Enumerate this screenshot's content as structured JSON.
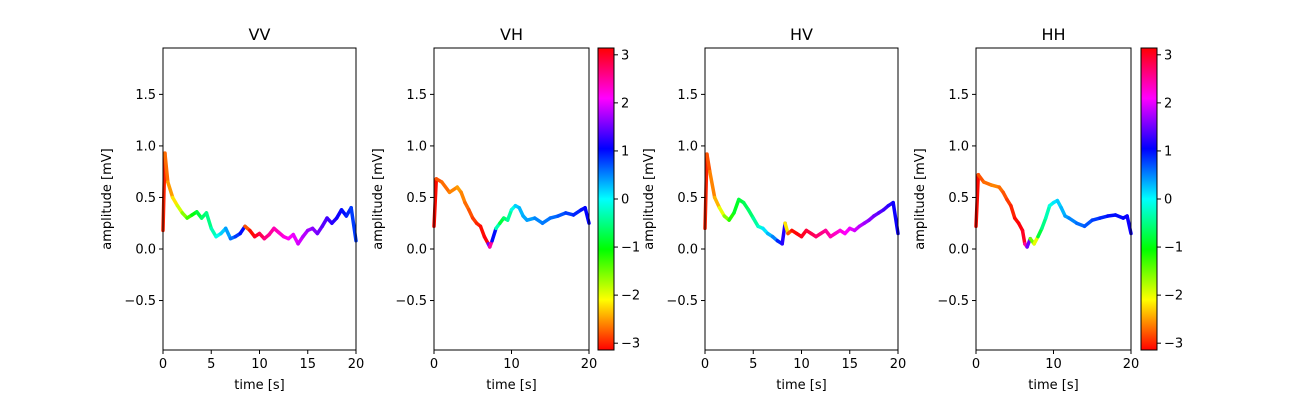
{
  "chart_data": [
    {
      "type": "line",
      "title": "VV",
      "xlabel": "time [s]",
      "ylabel": "amplitude [mV]",
      "xlim": [
        0,
        20
      ],
      "ylim": [
        -0.98,
        1.95
      ],
      "x_ticks": [
        0,
        5,
        10,
        15,
        20
      ],
      "y_ticks": [
        -0.5,
        0.0,
        0.5,
        1.0,
        1.5
      ],
      "x_tick_labels": [
        "0",
        "5",
        "10",
        "15",
        "20"
      ],
      "y_tick_labels": [
        "−0.5",
        "0.0",
        "0.5",
        "1.0",
        "1.5"
      ],
      "color_encoding": "phase (hsv, −π to π)",
      "series": [
        {
          "x": [
            0,
            0.2,
            0.5,
            1.0,
            1.5,
            2.0,
            2.5,
            3.0,
            3.5,
            4.0,
            4.5,
            5.0,
            5.5,
            6.0,
            6.5,
            7.0,
            7.5,
            8.0,
            8.5,
            9.0,
            9.5,
            10.0,
            10.5,
            11.0,
            11.5,
            12.0,
            12.5,
            13.0,
            13.5,
            14.0,
            14.5,
            15.0,
            15.5,
            16.0,
            16.5,
            17.0,
            17.5,
            18.0,
            18.5,
            19.0,
            19.5,
            20.0
          ],
          "y": [
            0.18,
            0.93,
            0.65,
            0.5,
            0.42,
            0.35,
            0.3,
            0.33,
            0.36,
            0.3,
            0.35,
            0.2,
            0.12,
            0.15,
            0.2,
            0.1,
            0.12,
            0.15,
            0.22,
            0.18,
            0.12,
            0.15,
            0.1,
            0.14,
            0.2,
            0.16,
            0.12,
            0.1,
            0.14,
            0.05,
            0.12,
            0.18,
            0.2,
            0.15,
            0.22,
            0.3,
            0.25,
            0.3,
            0.38,
            0.32,
            0.4,
            0.08
          ],
          "phase": [
            -3.0,
            -2.7,
            -2.5,
            -2.2,
            -1.9,
            -1.6,
            -1.3,
            -1.0,
            -0.8,
            -0.6,
            -0.5,
            -0.3,
            -0.1,
            0.2,
            0.4,
            0.6,
            0.8,
            1.0,
            -2.8,
            -3.1,
            3.0,
            2.8,
            2.6,
            2.5,
            2.4,
            2.3,
            2.2,
            2.1,
            2.0,
            1.9,
            1.8,
            1.7,
            1.6,
            1.5,
            1.4,
            1.3,
            1.2,
            1.1,
            1.0,
            0.9,
            0.8,
            3.1
          ]
        }
      ]
    },
    {
      "type": "line",
      "title": "VH",
      "xlabel": "time [s]",
      "ylabel": "amplitude [mV]",
      "xlim": [
        0,
        20
      ],
      "ylim": [
        -0.98,
        1.95
      ],
      "x_ticks": [
        0,
        10,
        20
      ],
      "y_ticks": [
        -0.5,
        0.0,
        0.5,
        1.0,
        1.5
      ],
      "x_tick_labels": [
        "0",
        "10",
        "20"
      ],
      "y_tick_labels": [
        "−0.5",
        "0.0",
        "0.5",
        "1.0",
        "1.5"
      ],
      "color_encoding": "phase (hsv, −π to π)",
      "series": [
        {
          "x": [
            0,
            0.3,
            1.0,
            2.0,
            3.0,
            3.5,
            4.0,
            4.5,
            5.0,
            5.5,
            6.0,
            6.5,
            7.0,
            7.2,
            7.5,
            8.0,
            8.5,
            9.0,
            9.5,
            10.0,
            10.5,
            11.0,
            11.5,
            12.0,
            13.0,
            14.0,
            15.0,
            16.0,
            17.0,
            18.0,
            19.0,
            19.5,
            20.0
          ],
          "y": [
            0.22,
            0.68,
            0.65,
            0.55,
            0.6,
            0.55,
            0.45,
            0.38,
            0.3,
            0.25,
            0.22,
            0.12,
            0.05,
            0.02,
            0.08,
            0.2,
            0.25,
            0.3,
            0.28,
            0.38,
            0.42,
            0.4,
            0.32,
            0.28,
            0.3,
            0.25,
            0.3,
            0.32,
            0.35,
            0.33,
            0.38,
            0.4,
            0.25
          ],
          "phase": [
            -3.1,
            -2.8,
            -2.7,
            -2.6,
            -2.5,
            -2.6,
            -2.7,
            -2.8,
            -2.9,
            -3.0,
            -3.1,
            3.1,
            1.5,
            2.5,
            1.0,
            -0.3,
            -0.8,
            -0.6,
            -0.4,
            -0.1,
            0.2,
            0.3,
            0.35,
            0.4,
            0.5,
            0.55,
            0.6,
            0.7,
            0.8,
            0.9,
            1.0,
            1.05,
            2.8
          ]
        }
      ],
      "colorbar": {
        "colormap": "hsv",
        "range": [
          -3.14159,
          3.14159
        ],
        "ticks": [
          -3,
          -2,
          -1,
          0,
          1,
          2,
          3
        ],
        "tick_labels": [
          "−3",
          "−2",
          "−1",
          "0",
          "1",
          "2",
          "3"
        ]
      }
    },
    {
      "type": "line",
      "title": "HV",
      "xlabel": "time [s]",
      "ylabel": "amplitude [mV]",
      "xlim": [
        0,
        20
      ],
      "ylim": [
        -0.98,
        1.95
      ],
      "x_ticks": [
        0,
        5,
        10,
        15,
        20
      ],
      "y_ticks": [
        -0.5,
        0.0,
        0.5,
        1.0,
        1.5
      ],
      "x_tick_labels": [
        "0",
        "5",
        "10",
        "15",
        "20"
      ],
      "y_tick_labels": [
        "−0.5",
        "0.0",
        "0.5",
        "1.0",
        "1.5"
      ],
      "color_encoding": "phase (hsv, −π to π)",
      "series": [
        {
          "x": [
            0,
            0.2,
            0.5,
            1.0,
            1.5,
            2.0,
            2.5,
            3.0,
            3.5,
            4.0,
            4.5,
            5.0,
            5.5,
            6.0,
            6.5,
            7.0,
            7.5,
            8.0,
            8.3,
            8.6,
            9.0,
            9.5,
            10.0,
            10.5,
            11.0,
            11.5,
            12.0,
            12.5,
            13.0,
            13.5,
            14.0,
            14.5,
            15.0,
            15.5,
            16.0,
            16.5,
            17.0,
            17.5,
            18.0,
            18.5,
            19.0,
            19.5,
            20.0
          ],
          "y": [
            0.2,
            0.92,
            0.75,
            0.5,
            0.4,
            0.32,
            0.28,
            0.35,
            0.48,
            0.45,
            0.38,
            0.3,
            0.22,
            0.2,
            0.15,
            0.12,
            0.08,
            0.05,
            0.25,
            0.15,
            0.18,
            0.15,
            0.12,
            0.18,
            0.15,
            0.12,
            0.15,
            0.18,
            0.12,
            0.15,
            0.18,
            0.15,
            0.2,
            0.18,
            0.22,
            0.25,
            0.28,
            0.32,
            0.35,
            0.38,
            0.42,
            0.45,
            0.15
          ],
          "phase": [
            -3.0,
            -2.8,
            -2.6,
            -2.4,
            -2.0,
            -1.6,
            -1.2,
            -0.9,
            -0.8,
            -0.7,
            -0.6,
            -0.4,
            -0.2,
            0.1,
            0.3,
            0.5,
            0.9,
            1.2,
            -2.2,
            -2.8,
            -3.1,
            3.1,
            3.0,
            2.9,
            2.8,
            2.7,
            2.6,
            2.5,
            2.4,
            2.3,
            2.2,
            2.1,
            2.0,
            1.9,
            1.8,
            1.7,
            1.6,
            1.5,
            1.4,
            1.3,
            1.2,
            1.1,
            3.0
          ]
        }
      ]
    },
    {
      "type": "line",
      "title": "HH",
      "xlabel": "time [s]",
      "ylabel": "amplitude [mV]",
      "xlim": [
        0,
        20
      ],
      "ylim": [
        -0.98,
        1.95
      ],
      "x_ticks": [
        0,
        10,
        20
      ],
      "y_ticks": [
        -0.5,
        0.0,
        0.5,
        1.0,
        1.5
      ],
      "x_tick_labels": [
        "0",
        "10",
        "20"
      ],
      "y_tick_labels": [
        "−0.5",
        "0.0",
        "0.5",
        "1.0",
        "1.5"
      ],
      "color_encoding": "phase (hsv, −π to π)",
      "series": [
        {
          "x": [
            0,
            0.3,
            1.0,
            2.0,
            3.0,
            3.5,
            4.0,
            4.5,
            5.0,
            5.5,
            6.0,
            6.3,
            6.6,
            7.0,
            7.5,
            8.0,
            8.5,
            9.0,
            9.5,
            10.0,
            10.5,
            11.0,
            11.5,
            12.0,
            13.0,
            14.0,
            15.0,
            16.0,
            17.0,
            18.0,
            19.0,
            19.5,
            20.0
          ],
          "y": [
            0.22,
            0.72,
            0.65,
            0.62,
            0.6,
            0.55,
            0.48,
            0.42,
            0.3,
            0.25,
            0.18,
            0.05,
            0.02,
            0.1,
            0.05,
            0.12,
            0.2,
            0.3,
            0.42,
            0.45,
            0.47,
            0.4,
            0.32,
            0.3,
            0.25,
            0.22,
            0.28,
            0.3,
            0.32,
            0.33,
            0.3,
            0.32,
            0.15
          ],
          "phase": [
            -3.1,
            -2.8,
            -2.7,
            -2.6,
            -2.7,
            -2.8,
            -2.9,
            -3.0,
            -3.1,
            3.1,
            3.0,
            2.5,
            1.5,
            -1.5,
            -2.0,
            -0.8,
            -0.5,
            -0.3,
            -0.1,
            0.1,
            0.2,
            0.3,
            0.4,
            0.5,
            0.6,
            0.7,
            0.8,
            0.9,
            1.0,
            1.0,
            1.05,
            1.1,
            2.5
          ]
        }
      ],
      "colorbar": {
        "colormap": "hsv",
        "range": [
          -3.14159,
          3.14159
        ],
        "ticks": [
          -3,
          -2,
          -1,
          0,
          1,
          2,
          3
        ],
        "tick_labels": [
          "−3",
          "−2",
          "−1",
          "0",
          "1",
          "2",
          "3"
        ]
      }
    }
  ]
}
